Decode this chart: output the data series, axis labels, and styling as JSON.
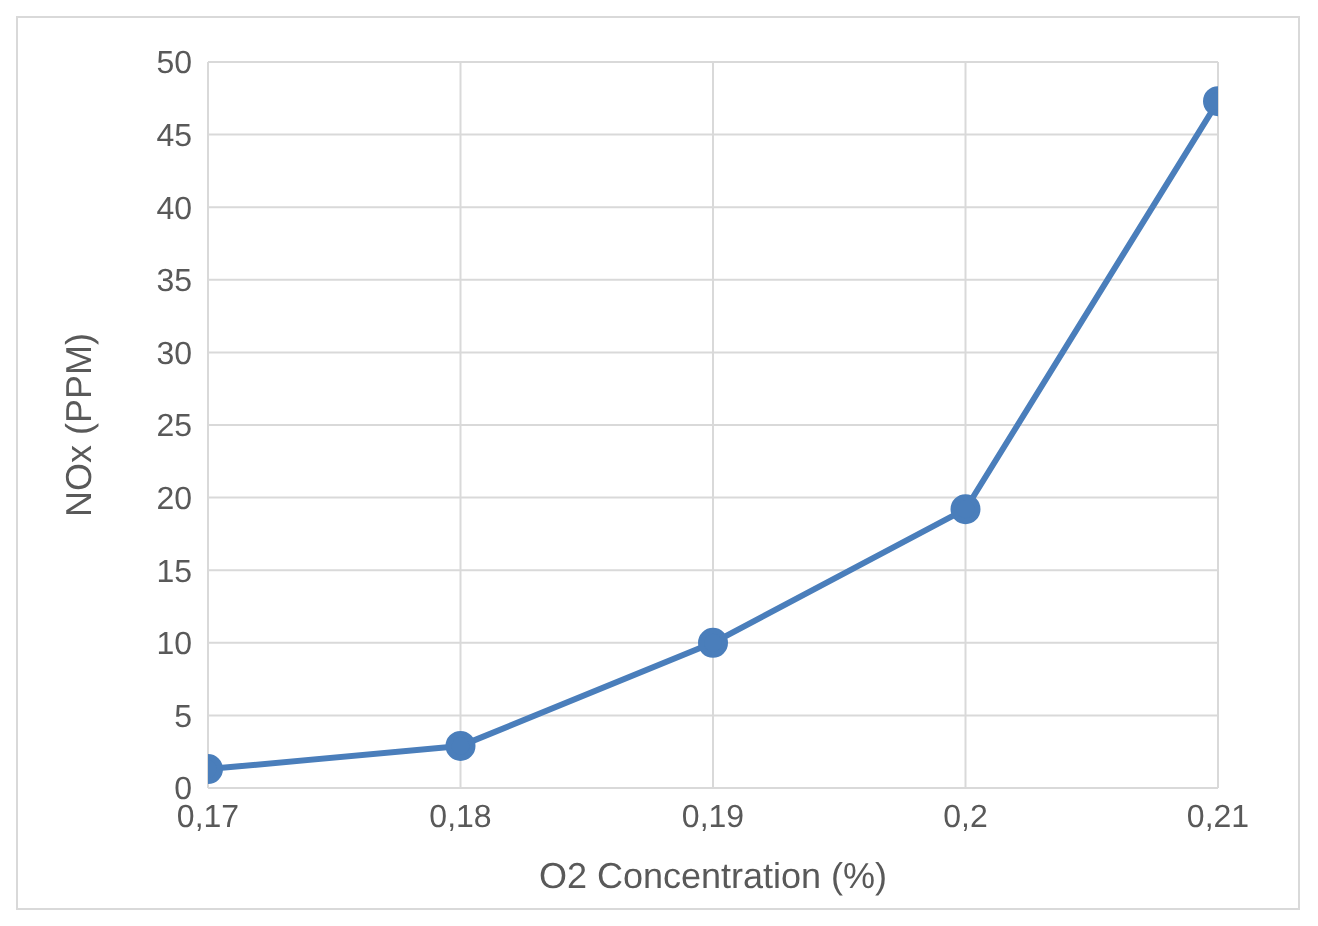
{
  "chart_data": {
    "type": "line",
    "xlabel": "O2 Concentration (%)",
    "ylabel": "NOx (PPM)",
    "x": [
      0.17,
      0.18,
      0.19,
      0.2,
      0.21
    ],
    "series": [
      {
        "color": "#4a7ebb",
        "values": [
          1.3,
          2.9,
          10,
          19.2,
          47.3
        ]
      }
    ],
    "xlim": [
      0.17,
      0.21
    ],
    "xticks": [
      {
        "value": 0.17,
        "label": "0,17"
      },
      {
        "value": 0.18,
        "label": "0,18"
      },
      {
        "value": 0.19,
        "label": "0,19"
      },
      {
        "value": 0.2,
        "label": "0,2"
      },
      {
        "value": 0.21,
        "label": "0,21"
      }
    ],
    "ylim": [
      0,
      50
    ],
    "yticks": [
      0,
      5,
      10,
      15,
      20,
      25,
      30,
      35,
      40,
      45,
      50
    ],
    "grid": true,
    "marker": "circle",
    "line_style": "solid"
  }
}
